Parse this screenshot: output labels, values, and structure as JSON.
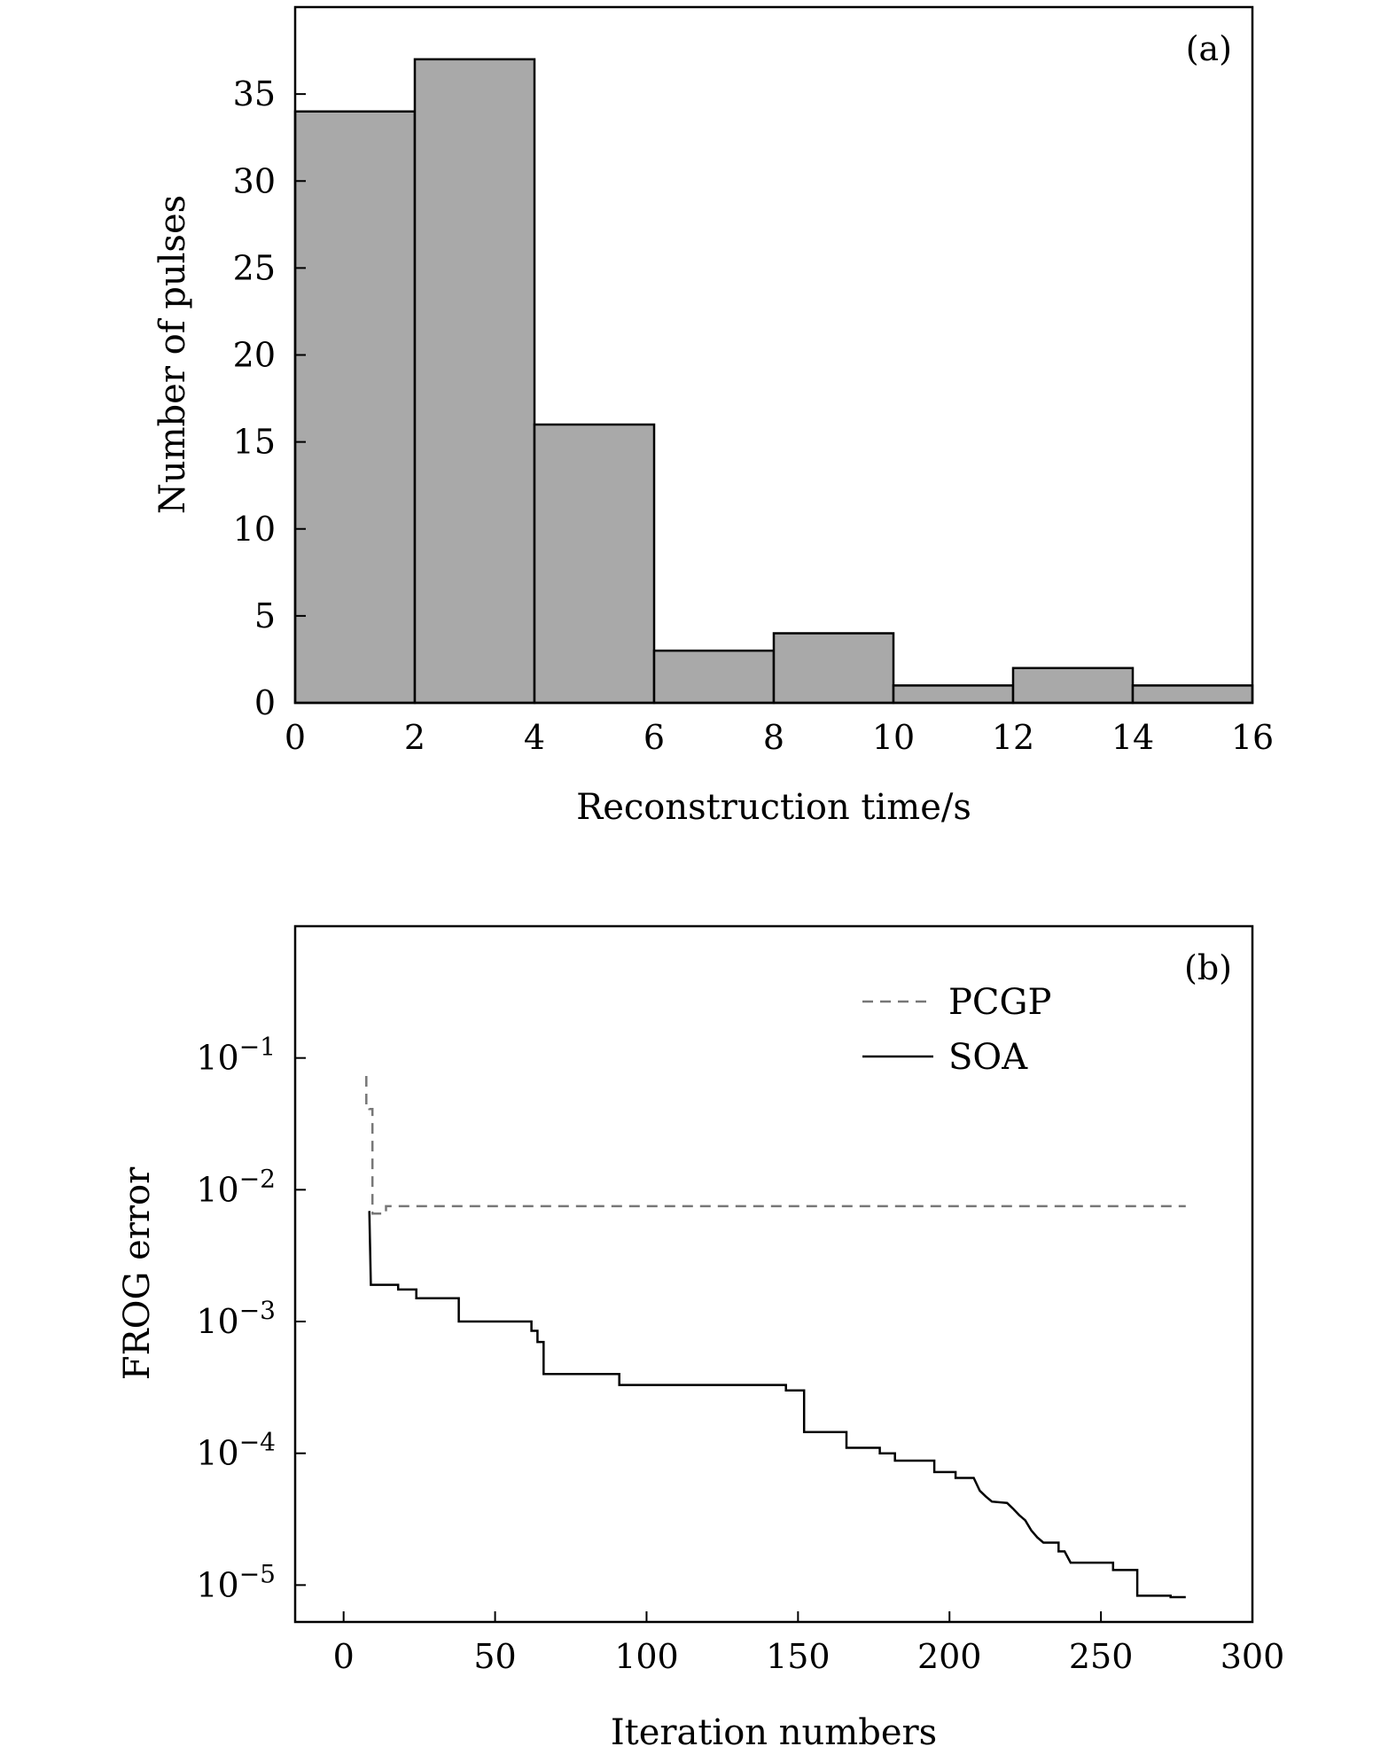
{
  "chart_data": [
    {
      "type": "bar",
      "panel": "(a)",
      "xlabel": "Reconstruction time/s",
      "ylabel": "Number of pulses",
      "bins": [
        {
          "start": 0,
          "end": 2,
          "value": 34
        },
        {
          "start": 2,
          "end": 4,
          "value": 37
        },
        {
          "start": 4,
          "end": 6,
          "value": 16
        },
        {
          "start": 6,
          "end": 8,
          "value": 3
        },
        {
          "start": 8,
          "end": 10,
          "value": 4
        },
        {
          "start": 10,
          "end": 12,
          "value": 1
        },
        {
          "start": 12,
          "end": 14,
          "value": 2
        },
        {
          "start": 14,
          "end": 16,
          "value": 1
        }
      ],
      "xlim": [
        0,
        16
      ],
      "ylim": [
        0,
        40
      ],
      "xticks": [
        0,
        2,
        4,
        6,
        8,
        10,
        12,
        14,
        16
      ],
      "yticks": [
        0,
        5,
        10,
        15,
        20,
        25,
        30,
        35
      ],
      "colors": {
        "bar_fill": "#a9a9a9",
        "bar_edge": "#000000"
      }
    },
    {
      "type": "line",
      "panel": "(b)",
      "xlabel": "Iteration numbers",
      "ylabel": "FROG error",
      "yscale": "log",
      "xlim": [
        -16,
        300
      ],
      "ylim_exponent": [
        -5.28,
        0
      ],
      "xticks": [
        0,
        50,
        100,
        150,
        200,
        250,
        300
      ],
      "yticks": [
        {
          "base": "10",
          "exp": "−1",
          "exponent": -1
        },
        {
          "base": "10",
          "exp": "−2",
          "exponent": -2
        },
        {
          "base": "10",
          "exp": "−3",
          "exponent": -3
        },
        {
          "base": "10",
          "exp": "−4",
          "exponent": -4
        },
        {
          "base": "10",
          "exp": "−5",
          "exponent": -5
        }
      ],
      "series": [
        {
          "name": "PCGP",
          "style": "dashed",
          "color": "#777777",
          "points": [
            [
              7.5,
              0.073
            ],
            [
              7.5,
              0.044
            ],
            [
              8.5,
              0.044
            ],
            [
              8.5,
              0.041
            ],
            [
              9.5,
              0.041
            ],
            [
              9.5,
              0.0066
            ],
            [
              14,
              0.0066
            ],
            [
              14,
              0.0075
            ],
            [
              278,
              0.0075
            ]
          ]
        },
        {
          "name": "SOA",
          "style": "solid",
          "color": "#000000",
          "points": [
            [
              8.5,
              0.0069
            ],
            [
              9,
              0.0019
            ],
            [
              18,
              0.0019
            ],
            [
              18,
              0.00175
            ],
            [
              24,
              0.00175
            ],
            [
              24,
              0.0015
            ],
            [
              38,
              0.0015
            ],
            [
              38,
              0.001
            ],
            [
              62,
              0.001
            ],
            [
              62,
              0.00085
            ],
            [
              64,
              0.00085
            ],
            [
              64,
              0.0007
            ],
            [
              66,
              0.0007
            ],
            [
              66,
              0.0004
            ],
            [
              91,
              0.0004
            ],
            [
              91,
              0.00033
            ],
            [
              146,
              0.00033
            ],
            [
              146,
              0.0003
            ],
            [
              152,
              0.0003
            ],
            [
              152,
              0.000145
            ],
            [
              166,
              0.000145
            ],
            [
              166,
              0.00011
            ],
            [
              177,
              0.00011
            ],
            [
              177,
              0.0001
            ],
            [
              182,
              0.0001
            ],
            [
              182,
              8.8e-05
            ],
            [
              195,
              8.8e-05
            ],
            [
              195,
              7.2e-05
            ],
            [
              202,
              7.2e-05
            ],
            [
              202,
              6.5e-05
            ],
            [
              208,
              6.5e-05
            ],
            [
              210,
              5.2e-05
            ],
            [
              212,
              4.7e-05
            ],
            [
              214,
              4.3e-05
            ],
            [
              219,
              4.2e-05
            ],
            [
              221,
              3.8e-05
            ],
            [
              223,
              3.4e-05
            ],
            [
              225,
              3.1e-05
            ],
            [
              227,
              2.6e-05
            ],
            [
              229,
              2.3e-05
            ],
            [
              231,
              2.1e-05
            ],
            [
              236,
              2.1e-05
            ],
            [
              236,
              1.8e-05
            ],
            [
              238,
              1.8e-05
            ],
            [
              240,
              1.48e-05
            ],
            [
              254,
              1.48e-05
            ],
            [
              254,
              1.3e-05
            ],
            [
              262,
              1.3e-05
            ],
            [
              262,
              8.3e-06
            ],
            [
              273,
              8.3e-06
            ],
            [
              273,
              8.1e-06
            ],
            [
              278,
              8.1e-06
            ]
          ]
        }
      ],
      "legend_position": "top-right"
    }
  ]
}
